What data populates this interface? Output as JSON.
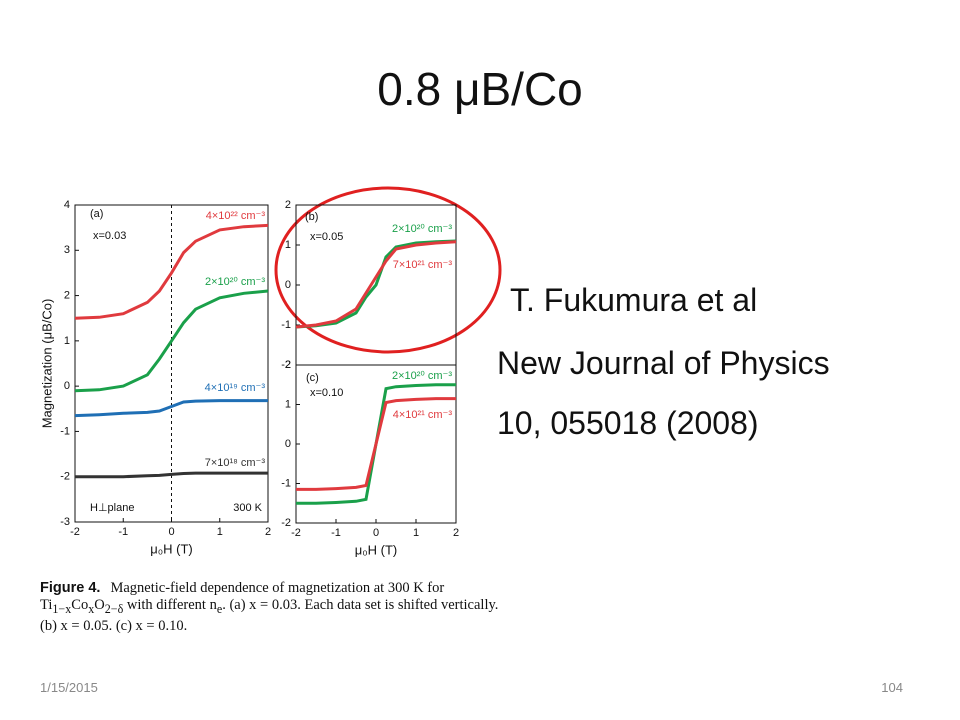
{
  "slide": {
    "title": "0.8 μB/Co",
    "citation": [
      "T. Fukumura et al",
      "New Journal of Physics",
      "10, 055018 (2008)"
    ],
    "date": "1/15/2015",
    "page": "104"
  },
  "caption": {
    "label": "Figure 4.",
    "lines": [
      [
        "Magnetic-field dependence of magnetization at 300 K for"
      ],
      [
        "Ti",
        {
          "sub": "1−x"
        },
        "Co",
        {
          "sub": "x"
        },
        "O",
        {
          "sub": "2−δ"
        },
        " with different n",
        {
          "sub": "e"
        },
        ". (a) x = 0.03. Each data set is shifted vertically."
      ],
      [
        "(b) x = 0.05. (c) x = 0.10."
      ]
    ]
  },
  "chart_data": [
    {
      "type": "line",
      "ylabel": "Magnetization (μB/Co)",
      "xlabel": "μ₀H (T)",
      "annotations": [
        "(a)",
        "x=0.03",
        "H⊥plane",
        "300 K"
      ],
      "x": [
        -2,
        -1.5,
        -1,
        -0.5,
        -0.25,
        0,
        0.25,
        0.5,
        1,
        1.5,
        2
      ],
      "series": [
        {
          "name": "4×10²² cm⁻³",
          "color": "#e03a3e",
          "values": [
            1.5,
            1.52,
            1.6,
            1.85,
            2.1,
            2.5,
            2.95,
            3.2,
            3.45,
            3.52,
            3.55
          ]
        },
        {
          "name": "2×10²⁰ cm⁻³",
          "color": "#1aa04a",
          "values": [
            -0.1,
            -0.08,
            0,
            0.25,
            0.6,
            1.0,
            1.4,
            1.7,
            1.95,
            2.05,
            2.1
          ]
        },
        {
          "name": "4×10¹⁹ cm⁻³",
          "color": "#1f6fb5",
          "values": [
            -0.65,
            -0.63,
            -0.6,
            -0.58,
            -0.55,
            -0.45,
            -0.35,
            -0.33,
            -0.32,
            -0.32,
            -0.32
          ]
        },
        {
          "name": "7×10¹⁸ cm⁻³",
          "color": "#333333",
          "values": [
            -2.0,
            -2.0,
            -2.0,
            -1.98,
            -1.97,
            -1.95,
            -1.93,
            -1.92,
            -1.92,
            -1.92,
            -1.92
          ]
        }
      ],
      "xlim": [
        -2,
        2
      ],
      "xticks": [
        -2,
        -1,
        0,
        1,
        2
      ],
      "ylim": [
        -3,
        4
      ],
      "yticks": [
        -3,
        -2,
        -1,
        0,
        1,
        2,
        3,
        4
      ]
    },
    {
      "type": "line",
      "annotations": [
        "(b)",
        "x=0.05"
      ],
      "x": [
        -2,
        -1.5,
        -1,
        -0.5,
        -0.25,
        0,
        0.25,
        0.5,
        1,
        1.5,
        2
      ],
      "series": [
        {
          "name": "2×10²⁰ cm⁻³",
          "color": "#1aa04a",
          "values": [
            -1.05,
            -1.02,
            -0.95,
            -0.7,
            -0.3,
            0,
            0.7,
            0.95,
            1.05,
            1.08,
            1.1
          ]
        },
        {
          "name": "7×10²¹ cm⁻³",
          "color": "#e03a3e",
          "values": [
            -1.05,
            -1.0,
            -0.9,
            -0.6,
            -0.2,
            0.2,
            0.6,
            0.9,
            1.0,
            1.05,
            1.08
          ]
        }
      ],
      "xlim": [
        -2,
        2
      ],
      "ylim": [
        -2,
        2
      ],
      "yticks": [
        -2,
        -1,
        0,
        1,
        2
      ]
    },
    {
      "type": "line",
      "xlabel": "μ₀H (T)",
      "annotations": [
        "(c)",
        "x=0.10"
      ],
      "x": [
        -2,
        -1.5,
        -1,
        -0.5,
        -0.25,
        0,
        0.25,
        0.5,
        1,
        1.5,
        2
      ],
      "series": [
        {
          "name": "2×10²⁰ cm⁻³",
          "color": "#1aa04a",
          "values": [
            -1.5,
            -1.5,
            -1.48,
            -1.45,
            -1.4,
            0,
            1.4,
            1.45,
            1.48,
            1.5,
            1.5
          ]
        },
        {
          "name": "4×10²¹ cm⁻³",
          "color": "#e03a3e",
          "values": [
            -1.15,
            -1.15,
            -1.13,
            -1.1,
            -1.05,
            0,
            1.05,
            1.1,
            1.13,
            1.15,
            1.15
          ]
        }
      ],
      "xlim": [
        -2,
        2
      ],
      "xticks": [
        -2,
        -1,
        0,
        1,
        2
      ],
      "ylim": [
        -2,
        2
      ],
      "yticks": [
        -2,
        -1,
        0,
        1,
        2
      ]
    }
  ]
}
